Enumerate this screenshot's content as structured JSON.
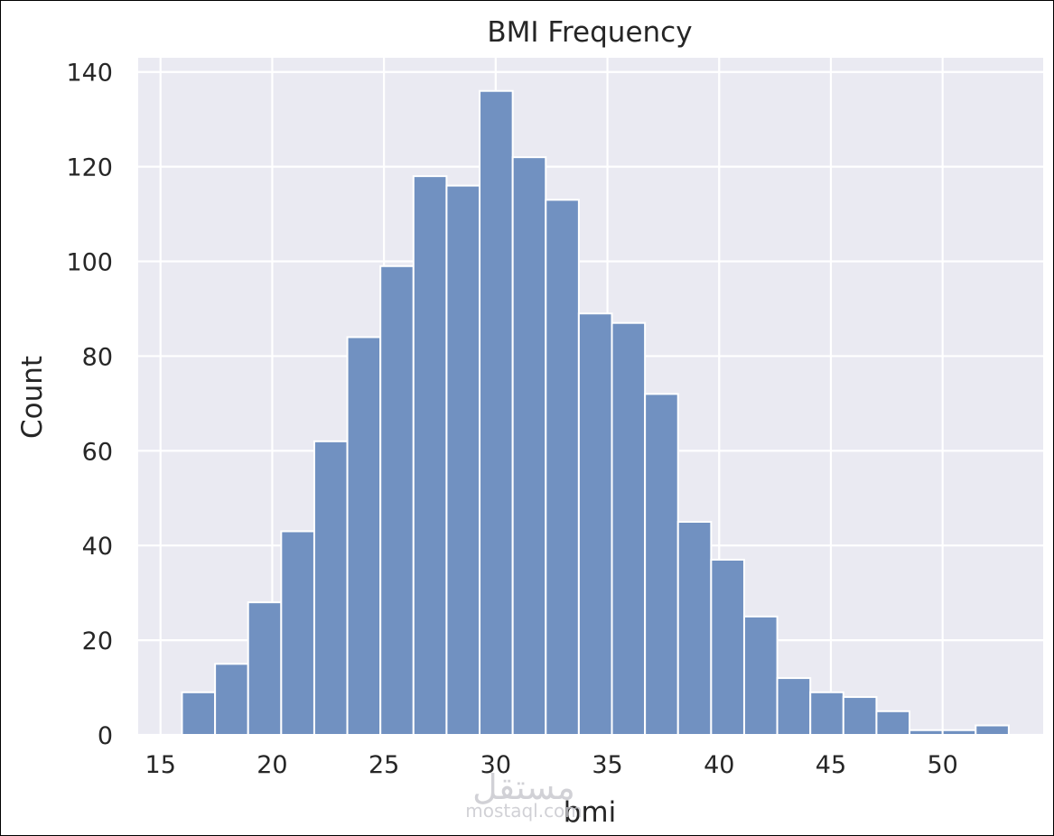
{
  "chart_data": {
    "type": "bar",
    "title": "BMI Frequency",
    "xlabel": "bmi",
    "ylabel": "Count",
    "xlim": [
      14,
      54.5
    ],
    "ylim": [
      0,
      143
    ],
    "xticks": [
      15,
      20,
      25,
      30,
      35,
      40,
      45,
      50
    ],
    "yticks": [
      0,
      20,
      40,
      60,
      80,
      100,
      120,
      140
    ],
    "grid": true,
    "bins": [
      {
        "x0": 15.96,
        "x1": 17.44,
        "count": 9
      },
      {
        "x0": 17.44,
        "x1": 18.92,
        "count": 15
      },
      {
        "x0": 18.92,
        "x1": 20.4,
        "count": 28
      },
      {
        "x0": 20.4,
        "x1": 21.88,
        "count": 43
      },
      {
        "x0": 21.88,
        "x1": 23.36,
        "count": 62
      },
      {
        "x0": 23.36,
        "x1": 24.84,
        "count": 84
      },
      {
        "x0": 24.84,
        "x1": 26.32,
        "count": 99
      },
      {
        "x0": 26.32,
        "x1": 27.8,
        "count": 118
      },
      {
        "x0": 27.8,
        "x1": 29.28,
        "count": 116
      },
      {
        "x0": 29.28,
        "x1": 30.76,
        "count": 136
      },
      {
        "x0": 30.76,
        "x1": 32.24,
        "count": 122
      },
      {
        "x0": 32.24,
        "x1": 33.72,
        "count": 113
      },
      {
        "x0": 33.72,
        "x1": 35.2,
        "count": 89
      },
      {
        "x0": 35.2,
        "x1": 36.68,
        "count": 87
      },
      {
        "x0": 36.68,
        "x1": 38.16,
        "count": 72
      },
      {
        "x0": 38.16,
        "x1": 39.64,
        "count": 45
      },
      {
        "x0": 39.64,
        "x1": 41.12,
        "count": 37
      },
      {
        "x0": 41.12,
        "x1": 42.6,
        "count": 25
      },
      {
        "x0": 42.6,
        "x1": 44.08,
        "count": 12
      },
      {
        "x0": 44.08,
        "x1": 45.56,
        "count": 9
      },
      {
        "x0": 45.56,
        "x1": 47.04,
        "count": 8
      },
      {
        "x0": 47.04,
        "x1": 48.52,
        "count": 5
      },
      {
        "x0": 48.52,
        "x1": 50.0,
        "count": 1
      },
      {
        "x0": 50.0,
        "x1": 51.48,
        "count": 1
      },
      {
        "x0": 51.48,
        "x1": 52.96,
        "count": 2
      }
    ],
    "colors": {
      "background": "#eaeaf2",
      "bar": "#7191c1",
      "bar_edge": "#ffffff",
      "grid": "#ffffff"
    }
  },
  "watermark": {
    "text_ar": "مستقل",
    "text_latin": "mostaql.com"
  }
}
